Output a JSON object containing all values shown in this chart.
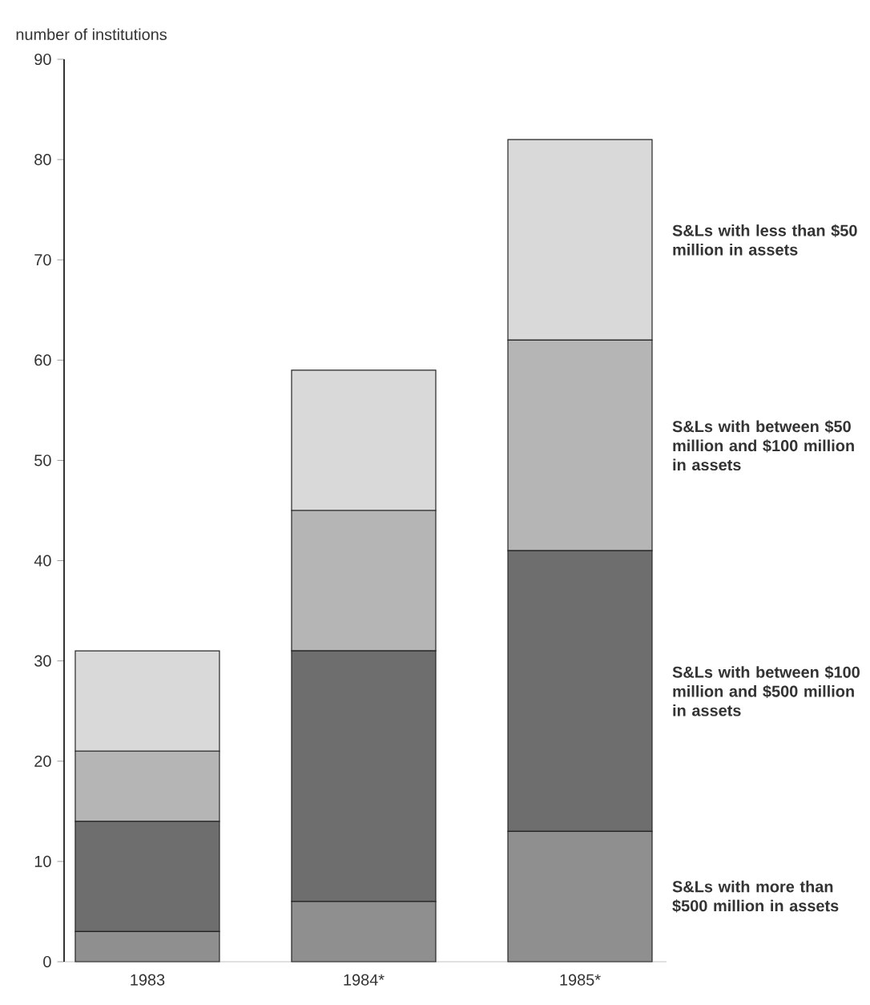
{
  "chart_data": {
    "type": "bar",
    "stacked": true,
    "ylabel": "number of institutions",
    "categories": [
      "1983",
      "1984*",
      "1985*"
    ],
    "series": [
      {
        "name": "S&Ls with more than $500 million in assets",
        "color": "#8f8f8f",
        "values": [
          3,
          6,
          13
        ]
      },
      {
        "name": "S&Ls with between $100 million and $500 million in assets",
        "color": "#6e6e6e",
        "values": [
          11,
          25,
          28
        ]
      },
      {
        "name": "S&Ls with between $50 million and $100 million in assets",
        "color": "#b5b5b5",
        "values": [
          7,
          14,
          21
        ]
      },
      {
        "name": "S&Ls with less than $50 million in assets",
        "color": "#d9d9d9",
        "values": [
          10,
          14,
          20
        ]
      }
    ],
    "ylim": [
      0,
      90
    ],
    "yticks": [
      0,
      10,
      20,
      30,
      40,
      50,
      60,
      70,
      80,
      90
    ]
  }
}
